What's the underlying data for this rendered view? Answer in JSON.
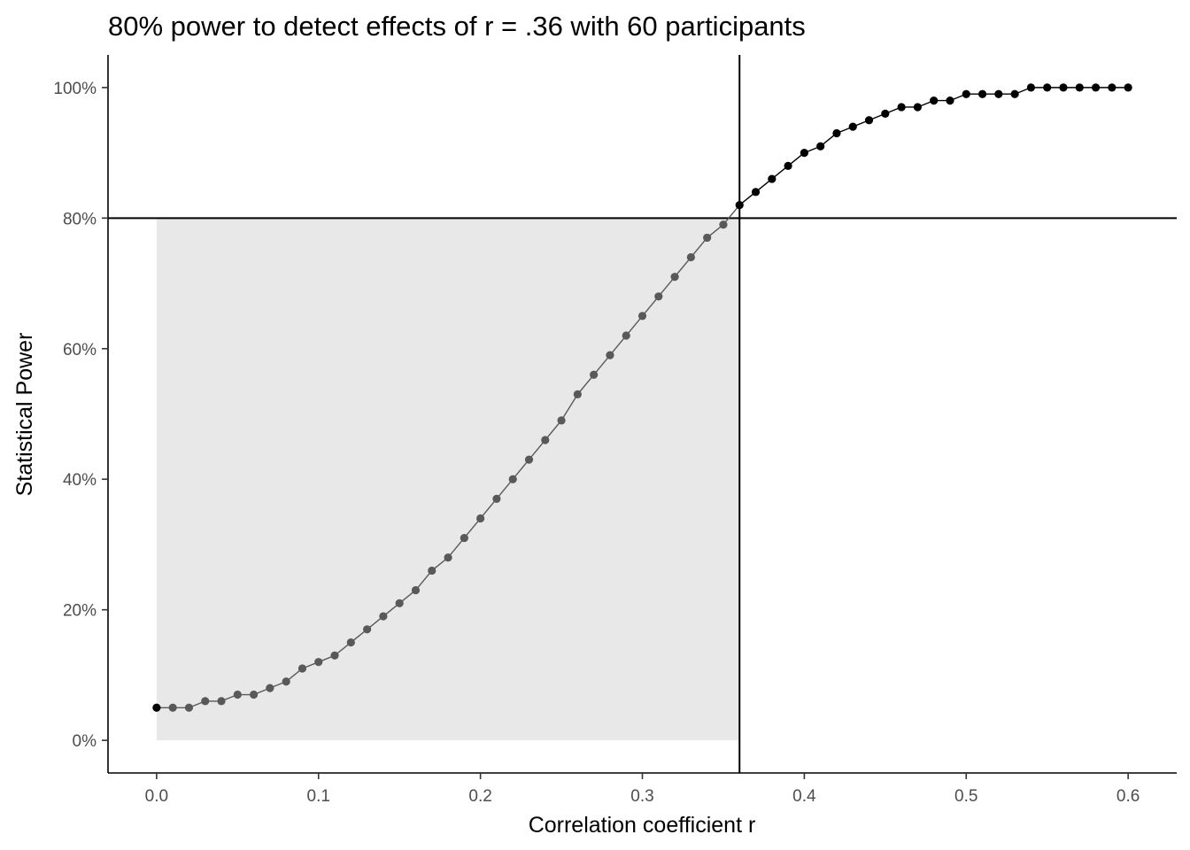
{
  "chart_data": {
    "type": "line",
    "title": "80% power to detect effects of r = .36 with 60 participants",
    "xlabel": "Correlation coefficient r",
    "ylabel": "Statistical Power",
    "xlim": [
      -0.03,
      0.63
    ],
    "ylim": [
      -5,
      105
    ],
    "x_ticks": [
      0.0,
      0.1,
      0.2,
      0.3,
      0.4,
      0.5,
      0.6
    ],
    "x_tick_labels": [
      "0.0",
      "0.1",
      "0.2",
      "0.3",
      "0.4",
      "0.5",
      "0.6"
    ],
    "y_ticks": [
      0,
      20,
      40,
      60,
      80,
      100
    ],
    "y_tick_labels": [
      "0%",
      "20%",
      "40%",
      "60%",
      "80%",
      "100%"
    ],
    "grid": false,
    "reference_lines": {
      "vertical_x": 0.36,
      "horizontal_y": 80
    },
    "shaded_region": {
      "x": [
        0.0,
        0.36
      ],
      "y": [
        0,
        80
      ],
      "color": "#e8e8e8"
    },
    "colors": {
      "below_target": "#595959",
      "above_target": "#000000"
    },
    "series": [
      {
        "x": [
          0.0,
          0.01,
          0.02,
          0.03,
          0.04,
          0.05,
          0.06,
          0.07,
          0.08,
          0.09,
          0.1,
          0.11,
          0.12,
          0.13,
          0.14,
          0.15,
          0.16,
          0.17,
          0.18,
          0.19,
          0.2,
          0.21,
          0.22,
          0.23,
          0.24,
          0.25,
          0.26,
          0.27,
          0.28,
          0.29,
          0.3,
          0.31,
          0.32,
          0.33,
          0.34,
          0.35,
          0.36,
          0.37,
          0.38,
          0.39,
          0.4,
          0.41,
          0.42,
          0.43,
          0.44,
          0.45,
          0.46,
          0.47,
          0.48,
          0.49,
          0.5,
          0.51,
          0.52,
          0.53,
          0.54,
          0.55,
          0.56,
          0.57,
          0.58,
          0.59,
          0.6
        ],
        "values": [
          5,
          5,
          5,
          6,
          6,
          7,
          7,
          8,
          9,
          11,
          12,
          13,
          15,
          17,
          19,
          21,
          23,
          26,
          28,
          31,
          34,
          37,
          40,
          43,
          46,
          49,
          53,
          56,
          59,
          62,
          65,
          68,
          71,
          74,
          77,
          79,
          82,
          84,
          86,
          88,
          90,
          91,
          93,
          94,
          95,
          96,
          97,
          97,
          98,
          98,
          99,
          99,
          99,
          99,
          100,
          100,
          100,
          100,
          100,
          100,
          100
        ]
      }
    ]
  }
}
